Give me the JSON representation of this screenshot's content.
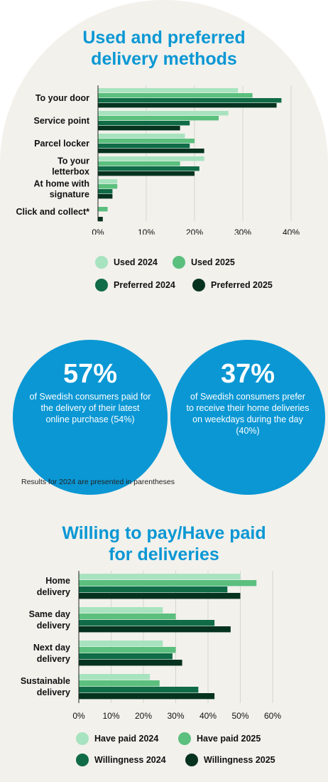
{
  "section1": {
    "title_line1": "Used and preferred",
    "title_line2": "delivery methods"
  },
  "section2": {
    "title_line1": "Willing to pay/Have paid",
    "title_line2": "for deliveries"
  },
  "stats": [
    {
      "value": "57%",
      "text": "of Swedish consumers paid for the delivery of their latest online purchase (54%)"
    },
    {
      "value": "37%",
      "text": "of Swedish consumers prefer to receive their home deliveries on weekdays during the day (40%)"
    }
  ],
  "note": "Results for 2024 are presented in parentheses",
  "colors": {
    "title": "#0a97d4",
    "circle": "#0a97d4",
    "panel_bg": "#f2f1ec",
    "series": [
      "#a8e3bf",
      "#5bbf7e",
      "#106b47",
      "#06331f"
    ]
  },
  "chart_data": [
    {
      "type": "bar",
      "orientation": "horizontal",
      "title": "Used and preferred delivery methods",
      "categories": [
        [
          "To your door"
        ],
        [
          "Service point"
        ],
        [
          "Parcel locker"
        ],
        [
          "To your",
          "letterbox"
        ],
        [
          "At home with",
          "signature"
        ],
        [
          "Click and collect*"
        ]
      ],
      "series": [
        {
          "name": "Used 2024",
          "values": [
            29,
            27,
            18,
            22,
            4,
            0
          ]
        },
        {
          "name": "Used 2025",
          "values": [
            32,
            25,
            20,
            17,
            4,
            2
          ]
        },
        {
          "name": "Preferred 2024",
          "values": [
            38,
            19,
            19,
            21,
            3,
            0
          ]
        },
        {
          "name": "Preferred 2025",
          "values": [
            37,
            17,
            22,
            20,
            3,
            1
          ]
        }
      ],
      "ticks": [
        "0%",
        "10%",
        "20%",
        "30%",
        "40%"
      ],
      "xlim": [
        0,
        40
      ],
      "grid": true,
      "legend_position": "bottom"
    },
    {
      "type": "bar",
      "orientation": "horizontal",
      "title": "Willing to pay/Have paid for deliveries",
      "categories": [
        [
          "Home",
          "delivery"
        ],
        [
          "Same day",
          "delivery"
        ],
        [
          "Next day",
          "delivery"
        ],
        [
          "Sustainable",
          "delivery"
        ]
      ],
      "series": [
        {
          "name": "Have paid 2024",
          "values": [
            50,
            26,
            26,
            22
          ]
        },
        {
          "name": "Have paid 2025",
          "values": [
            55,
            30,
            30,
            25
          ]
        },
        {
          "name": "Willingness 2024",
          "values": [
            46,
            42,
            29,
            37
          ]
        },
        {
          "name": "Willingness 2025",
          "values": [
            50,
            47,
            32,
            42
          ]
        }
      ],
      "ticks": [
        "0%",
        "10%",
        "20%",
        "30%",
        "40%",
        "50%",
        "60%"
      ],
      "xlim": [
        0,
        60
      ],
      "grid": true,
      "legend_position": "bottom"
    }
  ]
}
